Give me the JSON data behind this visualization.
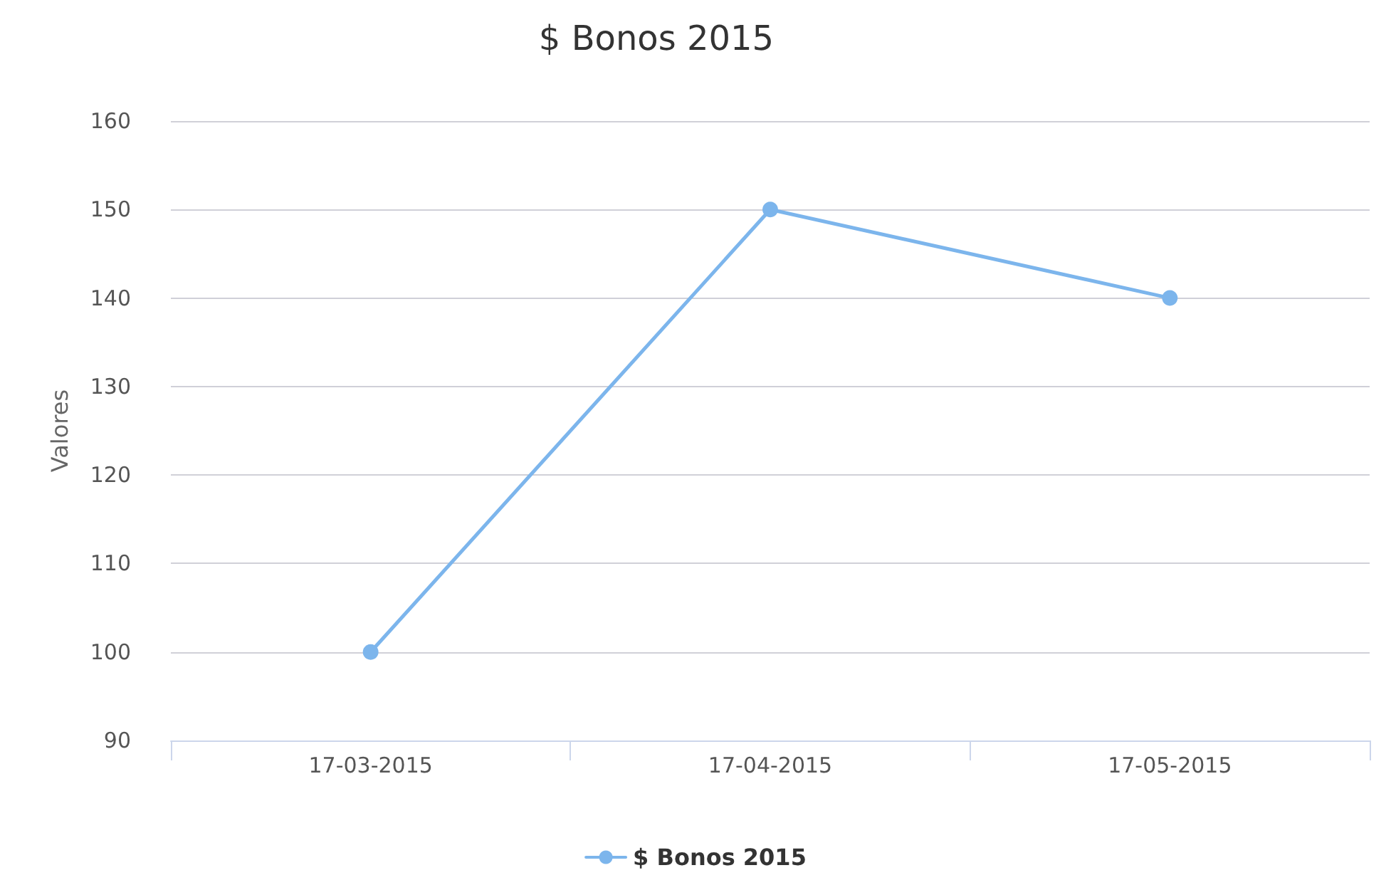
{
  "chart_data": {
    "type": "line",
    "title": "$ Bonos 2015",
    "ylabel": "Valores",
    "categories": [
      "17-03-2015",
      "17-04-2015",
      "17-05-2015"
    ],
    "series": [
      {
        "name": "$ Bonos 2015",
        "color": "#7cb5ec",
        "values": [
          100,
          150,
          140
        ]
      }
    ],
    "ylim": [
      90,
      160
    ],
    "yticks": [
      90,
      100,
      110,
      120,
      130,
      140,
      150,
      160
    ],
    "grid": "y",
    "legend": "bottom",
    "marker": "circle",
    "line_style": "solid"
  }
}
